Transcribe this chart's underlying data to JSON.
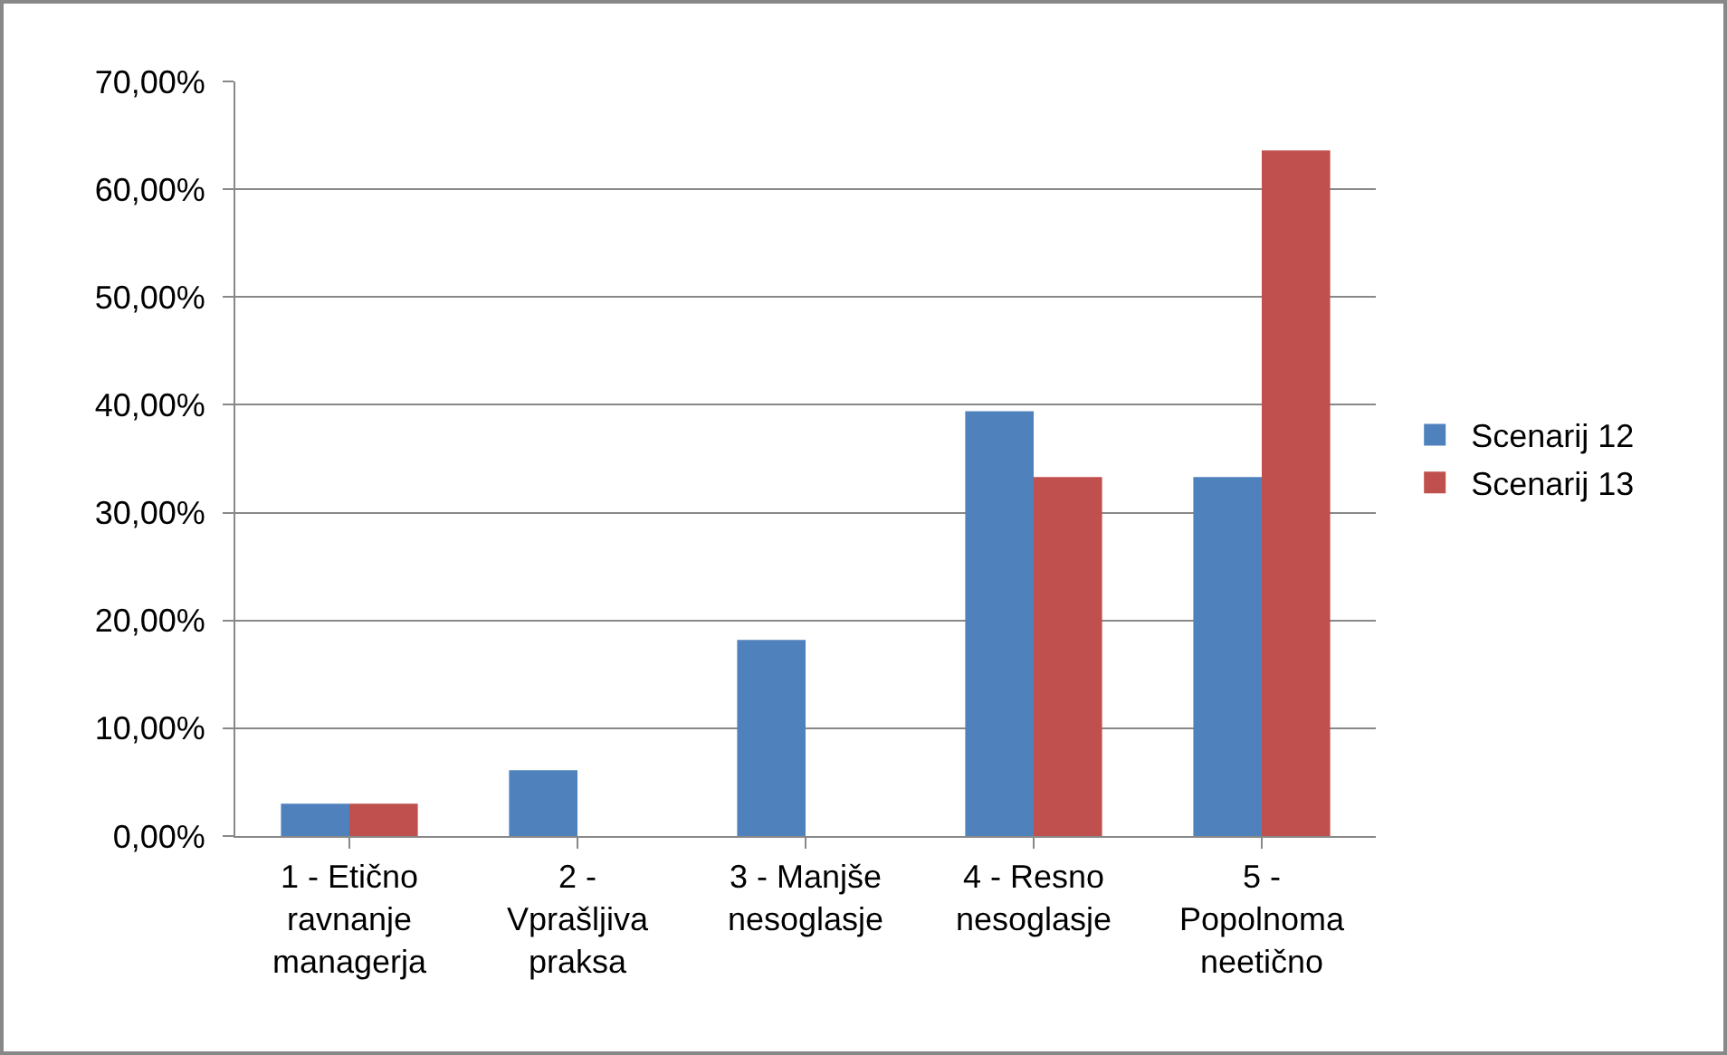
{
  "chart_data": {
    "type": "bar",
    "categories": [
      "1 - Etično\nravnanje\nmanagerja",
      "2 -\nVprašljiva\npraksa",
      "3 - Manjše\nnesoglasje",
      "4 - Resno\nnesoglasje",
      "5 -\nPopolnoma\nneetično"
    ],
    "series": [
      {
        "name": "Scenarij 12",
        "color": "#4f81bd",
        "values": [
          3.0,
          6.1,
          18.2,
          39.4,
          33.3
        ]
      },
      {
        "name": "Scenarij 13",
        "color": "#c0504d",
        "values": [
          3.0,
          0,
          0,
          33.3,
          63.6
        ]
      }
    ],
    "ylim": [
      0,
      70
    ],
    "yticks": [
      {
        "value": 0,
        "label": "0,00%"
      },
      {
        "value": 10,
        "label": "10,00%"
      },
      {
        "value": 20,
        "label": "20,00%"
      },
      {
        "value": 30,
        "label": "30,00%"
      },
      {
        "value": 40,
        "label": "40,00%"
      },
      {
        "value": 50,
        "label": "50,00%"
      },
      {
        "value": 60,
        "label": "60,00%"
      },
      {
        "value": 70,
        "label": "70,00%"
      }
    ],
    "grid": "y",
    "legend": "right"
  }
}
